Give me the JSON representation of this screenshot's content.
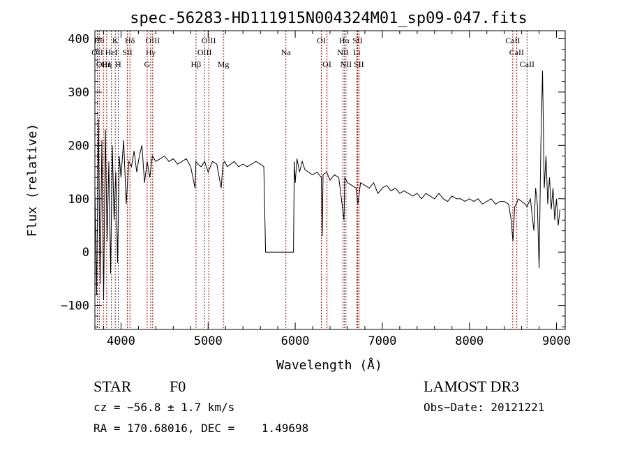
{
  "chart_data": {
    "type": "line",
    "title": "spec-56283-HD111915N004324M01_sp09-047.fits",
    "xlabel": "Wavelength (Å)",
    "ylabel": "Flux (relative)",
    "xlim": [
      3700,
      9100
    ],
    "ylim": [
      -145,
      415
    ],
    "xticks": [
      4000,
      5000,
      6000,
      7000,
      8000,
      9000
    ],
    "xtick_labels": [
      "4000",
      "5000",
      "6000",
      "7000",
      "8000",
      "9000"
    ],
    "yticks": [
      -100,
      0,
      100,
      200,
      300,
      400
    ],
    "ytick_labels": [
      "−100",
      "0",
      "100",
      "200",
      "300",
      "400"
    ],
    "grid": false,
    "series": [
      {
        "name": "",
        "color": "#000000",
        "x": [
          3700,
          3720,
          3740,
          3760,
          3780,
          3800,
          3820,
          3840,
          3860,
          3880,
          3900,
          3920,
          3940,
          3960,
          3980,
          4000,
          4030,
          4060,
          4090,
          4120,
          4150,
          4180,
          4210,
          4240,
          4270,
          4300,
          4330,
          4360,
          4400,
          4450,
          4500,
          4550,
          4600,
          4650,
          4700,
          4750,
          4800,
          4850,
          4860,
          4880,
          4920,
          4960,
          5000,
          5050,
          5100,
          5150,
          5170,
          5190,
          5220,
          5260,
          5300,
          5350,
          5400,
          5450,
          5500,
          5550,
          5600,
          5640,
          5660,
          5670,
          5700,
          5800,
          5900,
          5980,
          5990,
          6000,
          6020,
          6050,
          6080,
          6110,
          6150,
          6200,
          6250,
          6300,
          6310,
          6320,
          6360,
          6400,
          6450,
          6500,
          6560,
          6570,
          6600,
          6650,
          6700,
          6720,
          6750,
          6800,
          6850,
          6900,
          6950,
          7000,
          7050,
          7100,
          7150,
          7200,
          7250,
          7300,
          7350,
          7400,
          7450,
          7500,
          7550,
          7600,
          7650,
          7700,
          7750,
          7800,
          7850,
          7900,
          7950,
          8000,
          8050,
          8100,
          8150,
          8200,
          8250,
          8300,
          8350,
          8400,
          8450,
          8480,
          8500,
          8520,
          8540,
          8560,
          8600,
          8640,
          8660,
          8700,
          8740,
          8760,
          8780,
          8800,
          8820,
          8840,
          8860,
          8880,
          8900,
          8920,
          8940,
          8960,
          8980,
          9000,
          9020,
          9040
        ],
        "y": [
          120,
          -80,
          250,
          -60,
          210,
          -90,
          230,
          20,
          170,
          -40,
          200,
          60,
          150,
          -20,
          180,
          140,
          210,
          90,
          170,
          160,
          190,
          150,
          180,
          200,
          130,
          170,
          140,
          180,
          170,
          175,
          180,
          170,
          175,
          165,
          170,
          175,
          160,
          120,
          170,
          165,
          160,
          170,
          150,
          170,
          165,
          120,
          165,
          170,
          160,
          165,
          170,
          160,
          165,
          160,
          165,
          170,
          165,
          160,
          0,
          0,
          0,
          0,
          0,
          0,
          170,
          130,
          175,
          150,
          170,
          155,
          150,
          145,
          150,
          140,
          30,
          145,
          150,
          135,
          145,
          140,
          60,
          140,
          130,
          125,
          120,
          90,
          130,
          125,
          120,
          130,
          110,
          120,
          125,
          115,
          120,
          110,
          115,
          110,
          105,
          110,
          100,
          110,
          105,
          100,
          110,
          100,
          95,
          105,
          100,
          100,
          95,
          100,
          95,
          100,
          90,
          95,
          100,
          90,
          95,
          95,
          90,
          60,
          20,
          85,
          90,
          100,
          95,
          90,
          85,
          100,
          40,
          120,
          90,
          -30,
          200,
          340,
          120,
          180,
          90,
          140,
          80,
          120,
          60,
          100,
          50,
          80
        ]
      }
    ],
    "line_markers": [
      {
        "wl": 3750,
        "label": "Hθ",
        "row": 1
      },
      {
        "wl": 3728,
        "label": "OII",
        "row": 2
      },
      {
        "wl": 3798,
        "label": "OIII",
        "row": 3
      },
      {
        "wl": 3835,
        "label": "Hη",
        "row": 3
      },
      {
        "wl": 3889,
        "label": "HeI",
        "row": 2
      },
      {
        "wl": 3934,
        "label": "K",
        "row": 1
      },
      {
        "wl": 3968,
        "label": "H",
        "row": 3
      },
      {
        "wl": 4072,
        "label": "SII",
        "row": 2
      },
      {
        "wl": 4102,
        "label": "Hδ",
        "row": 1
      },
      {
        "wl": 4300,
        "label": "G",
        "row": 3
      },
      {
        "wl": 4340,
        "label": "Hγ",
        "row": 2
      },
      {
        "wl": 4363,
        "label": "OIII",
        "row": 1
      },
      {
        "wl": 4861,
        "label": "Hβ",
        "row": 3
      },
      {
        "wl": 4959,
        "label": "OIII",
        "row": 2
      },
      {
        "wl": 5007,
        "label": "OIII",
        "row": 1
      },
      {
        "wl": 5175,
        "label": "Mg",
        "row": 3
      },
      {
        "wl": 5893,
        "label": "Na",
        "row": 2
      },
      {
        "wl": 6300,
        "label": "OI",
        "row": 1
      },
      {
        "wl": 6364,
        "label": "OI",
        "row": 3
      },
      {
        "wl": 6548,
        "label": "NII",
        "row": 2
      },
      {
        "wl": 6563,
        "label": "Hα",
        "row": 1
      },
      {
        "wl": 6583,
        "label": "NII",
        "row": 3
      },
      {
        "wl": 6708,
        "label": "Li",
        "row": 2
      },
      {
        "wl": 6716,
        "label": "SII",
        "row": 1
      },
      {
        "wl": 6731,
        "label": "SII",
        "row": 3
      },
      {
        "wl": 8498,
        "label": "CaII",
        "row": 1
      },
      {
        "wl": 8542,
        "label": "CaII",
        "row": 2
      },
      {
        "wl": 8662,
        "label": "CaII",
        "row": 3
      }
    ]
  },
  "info": {
    "class": "STAR",
    "subclass": "F0",
    "survey": "LAMOST DR3",
    "cz": "cz = −56.8 ± 1.7 km/s",
    "obs_date": "Obs−Date: 20121221",
    "radec": "RA = 170.68016, DEC =    1.49698"
  }
}
